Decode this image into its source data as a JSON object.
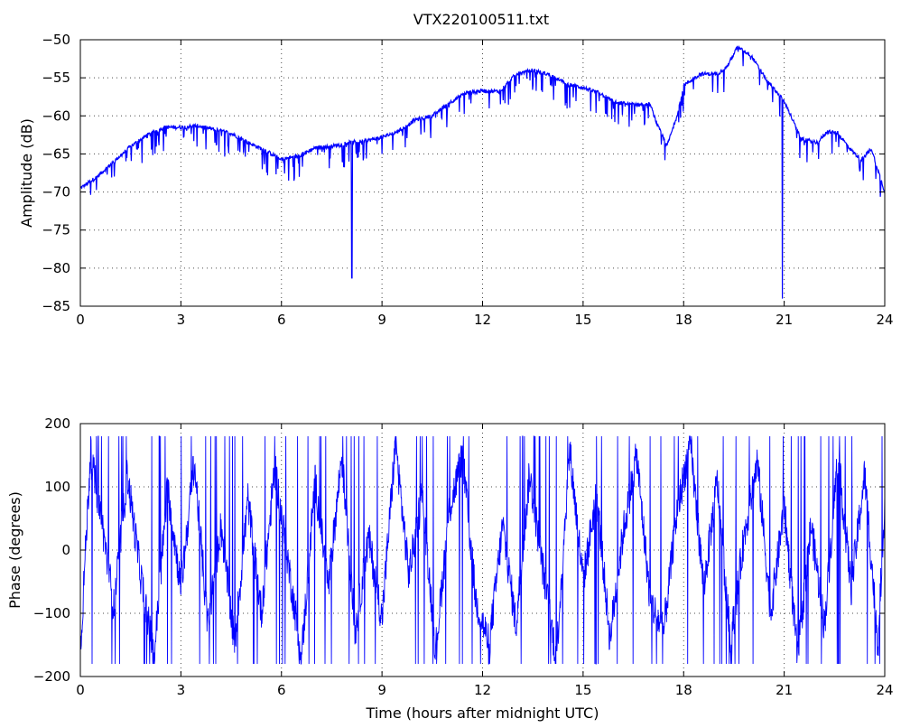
{
  "figure_title": "VTX220100511.txt",
  "chart_data": [
    {
      "type": "line",
      "title": "VTX220100511.txt",
      "xlabel": "",
      "ylabel": "Amplitude (dB)",
      "xlim": [
        0,
        24
      ],
      "ylim": [
        -85,
        -50
      ],
      "xticks": [
        0,
        3,
        6,
        9,
        12,
        15,
        18,
        21,
        24
      ],
      "yticks": [
        -85,
        -80,
        -75,
        -70,
        -65,
        -60,
        -55,
        -50
      ],
      "xtick_labels": [
        "0",
        "3",
        "6",
        "9",
        "12",
        "15",
        "18",
        "21",
        "24"
      ],
      "ytick_labels": [
        "-85",
        "-80",
        "-75",
        "-70",
        "-65",
        "-60",
        "-55",
        "-50"
      ],
      "grid": true,
      "color": "#0000ff",
      "series": [
        {
          "x": [
            0,
            0.5,
            1,
            1.5,
            2,
            2.5,
            3,
            3.5,
            4,
            4.5,
            5,
            5.5,
            6,
            6.5,
            7,
            7.5,
            8,
            8.5,
            9,
            9.5,
            10,
            10.5,
            11,
            11.5,
            12,
            12.5,
            13,
            13.5,
            14,
            14.5,
            15,
            15.5,
            16,
            16.5,
            17,
            17.2,
            17.5,
            17.8,
            18,
            18.5,
            19,
            19.3,
            19.6,
            20,
            20.5,
            21,
            21.5,
            22,
            22.3,
            22.6,
            23,
            23.3,
            23.6,
            24
          ],
          "y": [
            -69.5,
            -68,
            -66,
            -64,
            -62.5,
            -61.5,
            -61.5,
            -61.3,
            -61.8,
            -62.3,
            -63.5,
            -64.5,
            -65.7,
            -65.3,
            -64.2,
            -64,
            -63.5,
            -63.3,
            -62.8,
            -62,
            -60.5,
            -60,
            -58.3,
            -57,
            -56.7,
            -56.8,
            -54.5,
            -54,
            -54.6,
            -55.8,
            -56.3,
            -57,
            -58.3,
            -58.5,
            -58.5,
            -61,
            -64,
            -60,
            -56,
            -54.5,
            -54.5,
            -53.5,
            -51,
            -52,
            -55.5,
            -58,
            -63,
            -63.5,
            -62,
            -62.3,
            -64.5,
            -65.8,
            -64.3,
            -70
          ]
        }
      ],
      "dips": [
        {
          "x": 8.1,
          "y": -81.3
        },
        {
          "x": 20.95,
          "y": -84
        }
      ]
    },
    {
      "type": "line",
      "title": "",
      "xlabel": "Time (hours after midnight UTC)",
      "ylabel": "Phase (degrees)",
      "xlim": [
        0,
        24
      ],
      "ylim": [
        -200,
        200
      ],
      "xticks": [
        0,
        3,
        6,
        9,
        12,
        15,
        18,
        21,
        24
      ],
      "yticks": [
        -200,
        -100,
        0,
        100,
        200
      ],
      "xtick_labels": [
        "0",
        "3",
        "6",
        "9",
        "12",
        "15",
        "18",
        "21",
        "24"
      ],
      "ytick_labels": [
        "-200",
        "-100",
        "0",
        "100",
        "200"
      ],
      "grid": true,
      "color": "#0000ff",
      "wraps_at": [
        -180,
        180
      ],
      "series": [
        {
          "x": [
            0,
            0.3,
            0.6,
            1.0,
            1.4,
            1.8,
            2.2,
            2.6,
            3.0,
            3.4,
            3.8,
            4.2,
            4.6,
            5.0,
            5.4,
            5.8,
            6.2,
            6.6,
            7.0,
            7.4,
            7.8,
            8.2,
            8.6,
            9.0,
            9.4,
            9.8,
            10.2,
            10.6,
            11.0,
            11.4,
            11.8,
            12.2,
            12.6,
            13.0,
            13.4,
            13.8,
            14.2,
            14.6,
            15.0,
            15.4,
            15.8,
            16.2,
            16.6,
            17.0,
            17.4,
            17.8,
            18.2,
            18.6,
            19.0,
            19.4,
            19.8,
            20.2,
            20.6,
            21.0,
            21.4,
            21.8,
            22.2,
            22.6,
            23.0,
            23.4,
            23.8,
            24.0
          ],
          "y": [
            -160,
            150,
            60,
            -90,
            120,
            -40,
            -170,
            100,
            -60,
            140,
            -120,
            40,
            -150,
            80,
            -100,
            130,
            -20,
            -170,
            110,
            -60,
            150,
            -130,
            20,
            -110,
            170,
            -40,
            90,
            -160,
            60,
            150,
            -80,
            -150,
            40,
            -120,
            120,
            -30,
            -170,
            160,
            -50,
            90,
            -140,
            30,
            150,
            -80,
            -130,
            60,
            170,
            -60,
            110,
            -150,
            20,
            140,
            -100,
            70,
            -170,
            40,
            -120,
            150,
            -60,
            120,
            -150,
            80
          ]
        }
      ]
    }
  ]
}
